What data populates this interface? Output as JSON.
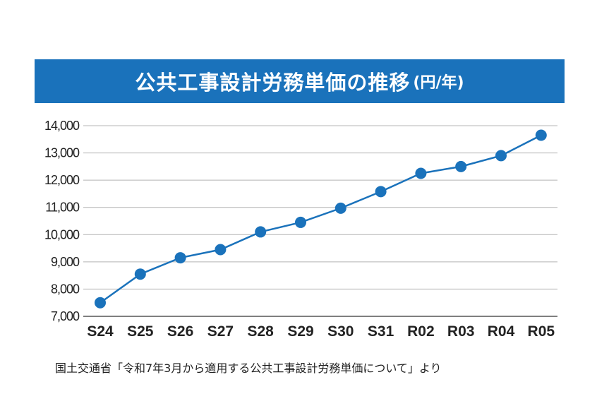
{
  "header": {
    "title": "公共工事設計労務単価の推移",
    "unit": "(円/年)"
  },
  "source_note": "国土交通省「令和7年3月から適用する公共工事設計労務単価について」より",
  "colors": {
    "title_bg": "#1a72bb",
    "line": "#1a72bb",
    "marker": "#1a72bb",
    "grid": "#b4b4b4",
    "axis": "#555555"
  },
  "chart_data": {
    "type": "line",
    "categories": [
      "S24",
      "S25",
      "S26",
      "S27",
      "S28",
      "S29",
      "S30",
      "S31",
      "R02",
      "R03",
      "R04",
      "R05"
    ],
    "series": [
      {
        "values": [
          7500,
          8550,
          9150,
          9450,
          10100,
          10450,
          10970,
          11580,
          12250,
          12500,
          12900,
          13650
        ]
      }
    ],
    "y_ticks": [
      "7,000",
      "8,000",
      "9,000",
      "10,000",
      "11,000",
      "12,000",
      "13,000",
      "14,000"
    ],
    "ylim": [
      7000,
      14000
    ],
    "grid": true,
    "xlabel": "",
    "ylabel": ""
  }
}
